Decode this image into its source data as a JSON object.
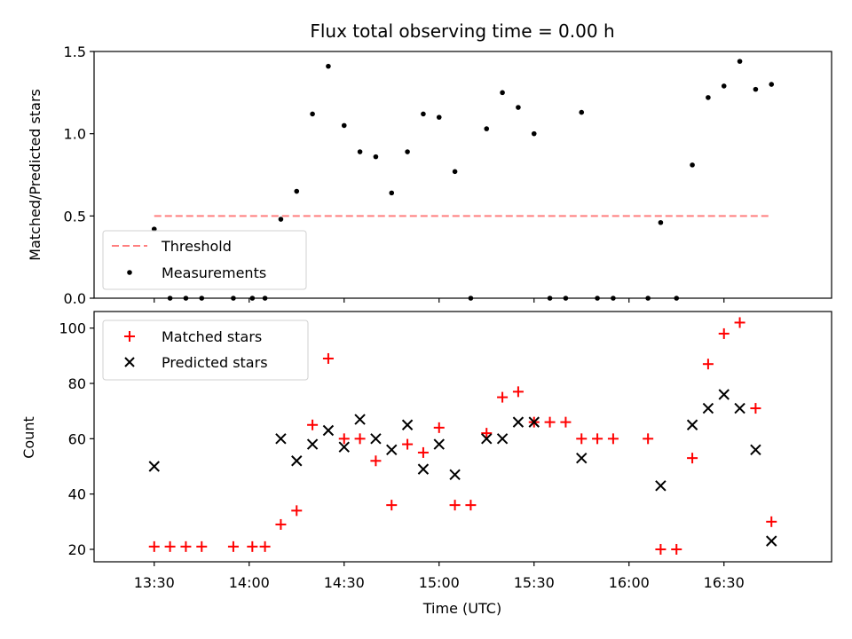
{
  "chart_data": [
    {
      "type": "scatter",
      "title": "Flux total observing time = 0.00 h",
      "xlabel": "",
      "ylabel": "Matched/Predicted stars",
      "ylim": [
        0,
        1.5
      ],
      "yticks": [
        "0.0",
        "0.5",
        "1.0",
        "1.5"
      ],
      "legend_position": "lower-left",
      "threshold": {
        "name": "Threshold",
        "value": 0.5,
        "x_start": "13:30",
        "x_end": "16:45",
        "color": "#ff7f7f",
        "style": "dashed"
      },
      "series": [
        {
          "name": "Measurements",
          "color": "#000000",
          "marker": "dot",
          "points": [
            {
              "x": "13:30",
              "y": 0.42
            },
            {
              "x": "13:35",
              "y": 0.0
            },
            {
              "x": "13:40",
              "y": 0.0
            },
            {
              "x": "13:45",
              "y": 0.0
            },
            {
              "x": "13:55",
              "y": 0.0
            },
            {
              "x": "14:01",
              "y": 0.0
            },
            {
              "x": "14:05",
              "y": 0.0
            },
            {
              "x": "14:10",
              "y": 0.48
            },
            {
              "x": "14:15",
              "y": 0.65
            },
            {
              "x": "14:20",
              "y": 1.12
            },
            {
              "x": "14:25",
              "y": 1.41
            },
            {
              "x": "14:30",
              "y": 1.05
            },
            {
              "x": "14:35",
              "y": 0.89
            },
            {
              "x": "14:40",
              "y": 0.86
            },
            {
              "x": "14:45",
              "y": 0.64
            },
            {
              "x": "14:50",
              "y": 0.89
            },
            {
              "x": "14:55",
              "y": 1.12
            },
            {
              "x": "15:00",
              "y": 1.1
            },
            {
              "x": "15:05",
              "y": 0.77
            },
            {
              "x": "15:10",
              "y": 0.0
            },
            {
              "x": "15:15",
              "y": 1.03
            },
            {
              "x": "15:20",
              "y": 1.25
            },
            {
              "x": "15:25",
              "y": 1.16
            },
            {
              "x": "15:30",
              "y": 1.0
            },
            {
              "x": "15:35",
              "y": 0.0
            },
            {
              "x": "15:40",
              "y": 0.0
            },
            {
              "x": "15:45",
              "y": 1.13
            },
            {
              "x": "15:50",
              "y": 0.0
            },
            {
              "x": "15:55",
              "y": 0.0
            },
            {
              "x": "16:06",
              "y": 0.0
            },
            {
              "x": "16:10",
              "y": 0.46
            },
            {
              "x": "16:15",
              "y": 0.0
            },
            {
              "x": "16:20",
              "y": 0.81
            },
            {
              "x": "16:25",
              "y": 1.22
            },
            {
              "x": "16:30",
              "y": 1.29
            },
            {
              "x": "16:35",
              "y": 1.44
            },
            {
              "x": "16:40",
              "y": 1.27
            },
            {
              "x": "16:45",
              "y": 1.3
            }
          ]
        }
      ]
    },
    {
      "type": "scatter",
      "title": "",
      "xlabel": "Time (UTC)",
      "ylabel": "Count",
      "ylim": [
        15.5,
        106
      ],
      "yticks": [
        "20",
        "40",
        "60",
        "80",
        "100"
      ],
      "xticks": [
        "13:30",
        "14:00",
        "14:30",
        "15:00",
        "15:30",
        "16:00",
        "16:30"
      ],
      "legend_position": "upper-left",
      "series": [
        {
          "name": "Matched stars",
          "color": "#ff0000",
          "marker": "plus",
          "points": [
            {
              "x": "13:30",
              "y": 21
            },
            {
              "x": "13:35",
              "y": 21
            },
            {
              "x": "13:40",
              "y": 21
            },
            {
              "x": "13:45",
              "y": 21
            },
            {
              "x": "13:55",
              "y": 21
            },
            {
              "x": "14:01",
              "y": 21
            },
            {
              "x": "14:05",
              "y": 21
            },
            {
              "x": "14:10",
              "y": 29
            },
            {
              "x": "14:15",
              "y": 34
            },
            {
              "x": "14:20",
              "y": 65
            },
            {
              "x": "14:25",
              "y": 89
            },
            {
              "x": "14:30",
              "y": 60
            },
            {
              "x": "14:35",
              "y": 60
            },
            {
              "x": "14:40",
              "y": 52
            },
            {
              "x": "14:45",
              "y": 36
            },
            {
              "x": "14:50",
              "y": 58
            },
            {
              "x": "14:55",
              "y": 55
            },
            {
              "x": "15:00",
              "y": 64
            },
            {
              "x": "15:05",
              "y": 36
            },
            {
              "x": "15:10",
              "y": 36
            },
            {
              "x": "15:15",
              "y": 62
            },
            {
              "x": "15:20",
              "y": 75
            },
            {
              "x": "15:25",
              "y": 77
            },
            {
              "x": "15:30",
              "y": 66
            },
            {
              "x": "15:35",
              "y": 66
            },
            {
              "x": "15:40",
              "y": 66
            },
            {
              "x": "15:45",
              "y": 60
            },
            {
              "x": "15:50",
              "y": 60
            },
            {
              "x": "15:55",
              "y": 60
            },
            {
              "x": "16:06",
              "y": 60
            },
            {
              "x": "16:10",
              "y": 20
            },
            {
              "x": "16:15",
              "y": 20
            },
            {
              "x": "16:20",
              "y": 53
            },
            {
              "x": "16:25",
              "y": 87
            },
            {
              "x": "16:30",
              "y": 98
            },
            {
              "x": "16:35",
              "y": 102
            },
            {
              "x": "16:40",
              "y": 71
            },
            {
              "x": "16:45",
              "y": 30
            }
          ]
        },
        {
          "name": "Predicted stars",
          "color": "#000000",
          "marker": "x",
          "points": [
            {
              "x": "13:30",
              "y": 50
            },
            {
              "x": "14:10",
              "y": 60
            },
            {
              "x": "14:15",
              "y": 52
            },
            {
              "x": "14:20",
              "y": 58
            },
            {
              "x": "14:25",
              "y": 63
            },
            {
              "x": "14:30",
              "y": 57
            },
            {
              "x": "14:35",
              "y": 67
            },
            {
              "x": "14:40",
              "y": 60
            },
            {
              "x": "14:45",
              "y": 56
            },
            {
              "x": "14:50",
              "y": 65
            },
            {
              "x": "14:55",
              "y": 49
            },
            {
              "x": "15:00",
              "y": 58
            },
            {
              "x": "15:05",
              "y": 47
            },
            {
              "x": "15:15",
              "y": 60
            },
            {
              "x": "15:20",
              "y": 60
            },
            {
              "x": "15:25",
              "y": 66
            },
            {
              "x": "15:30",
              "y": 66
            },
            {
              "x": "15:45",
              "y": 53
            },
            {
              "x": "16:10",
              "y": 43
            },
            {
              "x": "16:20",
              "y": 65
            },
            {
              "x": "16:25",
              "y": 71
            },
            {
              "x": "16:30",
              "y": 76
            },
            {
              "x": "16:35",
              "y": 71
            },
            {
              "x": "16:40",
              "y": 56
            },
            {
              "x": "16:45",
              "y": 23
            }
          ]
        }
      ]
    }
  ]
}
